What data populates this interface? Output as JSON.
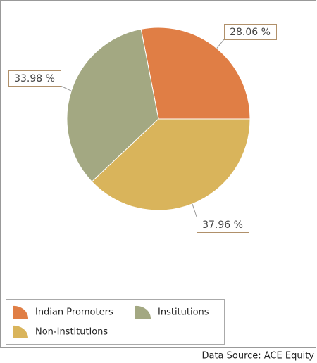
{
  "chart_data": {
    "type": "pie",
    "categories": [
      "Indian Promoters",
      "Institutions",
      "Non-Institutions"
    ],
    "values": [
      28.06,
      33.98,
      37.96
    ],
    "value_labels": [
      "28.06 %",
      "33.98 %",
      "37.96 %"
    ],
    "colors": [
      "#e07e45",
      "#a3a882",
      "#d9b45b"
    ],
    "source": "Data Source: ACE Equity"
  }
}
